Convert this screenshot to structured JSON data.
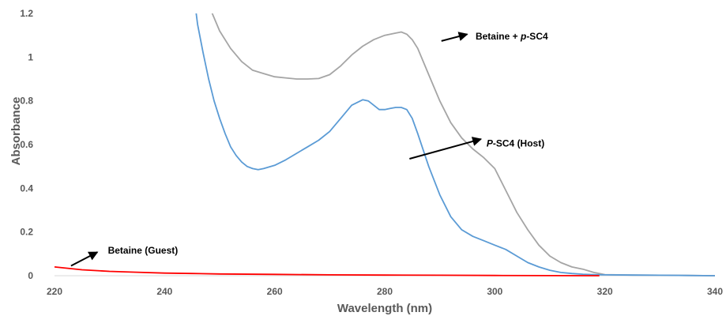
{
  "chart_data": {
    "type": "line",
    "xlabel": "Wavelength (nm)",
    "ylabel": "Absorbance",
    "xlim": [
      220,
      340
    ],
    "ylim": [
      0,
      1.2
    ],
    "xticks": [
      "220",
      "240",
      "260",
      "280",
      "300",
      "320",
      "340"
    ],
    "yticks": [
      "0",
      "0.2",
      "0.4",
      "0.6",
      "0.8",
      "1",
      "1.2"
    ],
    "grid": false,
    "legend": "none",
    "series": [
      {
        "key": "complex",
        "color": "#a5a5a5",
        "x": [
          248.5,
          250,
          252,
          254,
          256,
          258,
          260,
          262,
          264,
          266,
          268,
          270,
          272,
          274,
          276,
          278,
          280,
          282,
          283,
          284,
          285,
          286,
          288,
          290,
          292,
          294,
          296,
          298,
          300,
          302,
          304,
          306,
          308,
          310,
          312,
          314,
          316,
          318,
          320,
          325,
          330,
          335,
          340
        ],
        "y": [
          1.21,
          1.12,
          1.04,
          0.98,
          0.94,
          0.925,
          0.91,
          0.905,
          0.9,
          0.9,
          0.902,
          0.92,
          0.96,
          1.01,
          1.05,
          1.08,
          1.1,
          1.11,
          1.115,
          1.105,
          1.08,
          1.04,
          0.92,
          0.8,
          0.7,
          0.63,
          0.58,
          0.54,
          0.49,
          0.39,
          0.29,
          0.21,
          0.14,
          0.09,
          0.06,
          0.04,
          0.03,
          0.015,
          0.005,
          0.003,
          0.002,
          0.001,
          0.0
        ]
      },
      {
        "key": "host",
        "color": "#5b9bd5",
        "x": [
          245.7,
          246,
          247,
          248,
          249,
          250,
          251,
          252,
          253,
          254,
          255,
          256,
          257,
          258,
          260,
          262,
          264,
          266,
          268,
          270,
          272,
          274,
          276,
          277,
          278,
          279,
          280,
          281,
          282,
          283,
          284,
          285,
          286,
          288,
          290,
          292,
          294,
          296,
          298,
          300,
          302,
          304,
          306,
          308,
          310,
          312,
          314,
          316,
          318,
          320,
          325,
          330,
          335,
          340
        ],
        "y": [
          1.21,
          1.15,
          1.02,
          0.9,
          0.8,
          0.72,
          0.65,
          0.59,
          0.55,
          0.52,
          0.5,
          0.49,
          0.485,
          0.49,
          0.505,
          0.53,
          0.56,
          0.59,
          0.62,
          0.66,
          0.72,
          0.78,
          0.805,
          0.8,
          0.78,
          0.76,
          0.76,
          0.765,
          0.77,
          0.77,
          0.76,
          0.72,
          0.65,
          0.5,
          0.37,
          0.27,
          0.21,
          0.18,
          0.16,
          0.14,
          0.12,
          0.09,
          0.06,
          0.04,
          0.025,
          0.015,
          0.01,
          0.007,
          0.005,
          0.004,
          0.003,
          0.002,
          0.001,
          0.0
        ]
      },
      {
        "key": "guest",
        "color": "#ff0000",
        "x": [
          220,
          225,
          230,
          235,
          240,
          245,
          250,
          260,
          270,
          280,
          290,
          300,
          310,
          319
        ],
        "y": [
          0.04,
          0.027,
          0.02,
          0.016,
          0.012,
          0.01,
          0.008,
          0.006,
          0.004,
          0.003,
          0.002,
          0.001,
          0.0005,
          0.0
        ]
      }
    ],
    "annotations": [
      {
        "text_before": "Betaine + ",
        "text_italic": "p",
        "text_after": "-SC4",
        "arrow_from": [
          290.3,
          1.074
        ],
        "arrow_to": [
          295.0,
          1.105
        ],
        "text_at": [
          296.5,
          1.095
        ]
      },
      {
        "text_before": "",
        "text_italic": "P",
        "text_after": "-SC4 (Host)",
        "arrow_from": [
          284.5,
          0.535
        ],
        "arrow_to": [
          297.5,
          0.625
        ],
        "text_at": [
          298.5,
          0.605
        ]
      },
      {
        "text_before": "Betaine (Guest)",
        "text_italic": "",
        "text_after": "",
        "arrow_from": [
          223.0,
          0.045
        ],
        "arrow_to": [
          227.8,
          0.108
        ],
        "text_at": [
          229.7,
          0.115
        ]
      }
    ]
  }
}
